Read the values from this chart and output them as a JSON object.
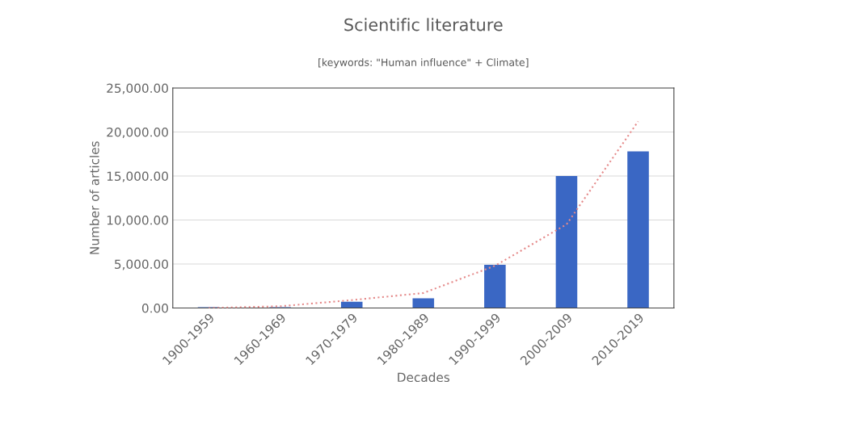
{
  "chart_data": {
    "type": "bar",
    "title": "Scientific literature",
    "subtitle": "[keywords: \"Human influence\" + Climate]",
    "xlabel": "Decades",
    "ylabel": "Number of articles",
    "categories": [
      "1900-1959",
      "1960-1969",
      "1970-1979",
      "1980-1989",
      "1990-1999",
      "2000-2009",
      "2010-2019"
    ],
    "series": [
      {
        "color": "#3a67c4",
        "values": [
          100,
          100,
          700,
          1100,
          4900,
          15000,
          17800
        ]
      },
      {
        "type": "line",
        "color": "#e58a8a",
        "line_style": "dotted",
        "values": [
          0,
          200,
          900,
          1700,
          4800,
          9500,
          21200
        ]
      }
    ],
    "ylim": [
      0,
      25000
    ],
    "yticks": [
      {
        "value": 0,
        "label": "0.00"
      },
      {
        "value": 5000,
        "label": "5,000.00"
      },
      {
        "value": 10000,
        "label": "10,000.00"
      },
      {
        "value": 15000,
        "label": "15,000.00"
      },
      {
        "value": 20000,
        "label": "20,000.00"
      },
      {
        "value": 25000,
        "label": "25,000.00"
      }
    ],
    "grid": "y",
    "legend": false
  }
}
